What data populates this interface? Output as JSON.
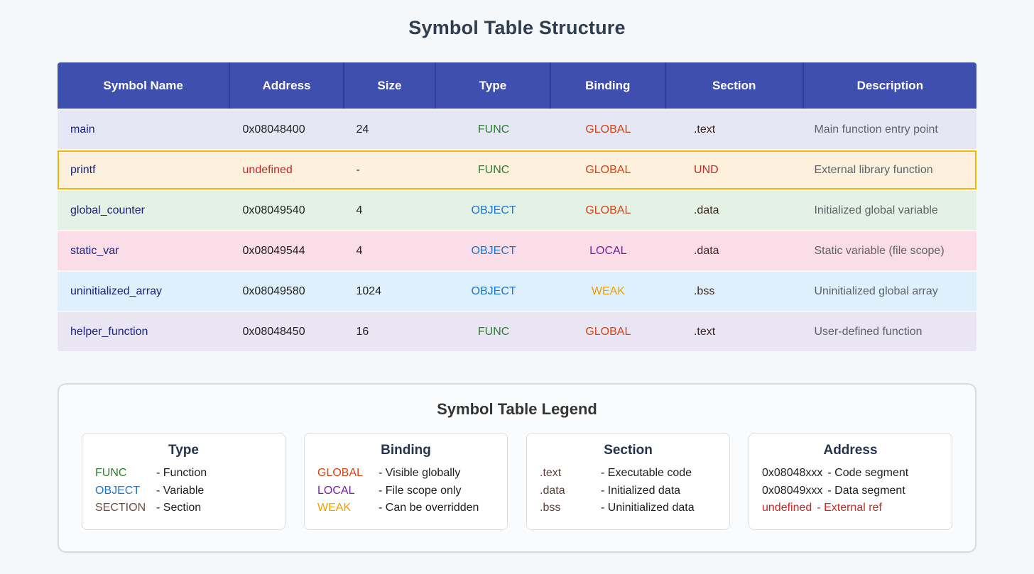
{
  "page": {
    "title": "Symbol Table Structure"
  },
  "table": {
    "headers": [
      "Symbol Name",
      "Address",
      "Size",
      "Type",
      "Binding",
      "Section",
      "Description"
    ],
    "header_bg": "#3f4fb0",
    "rows": [
      {
        "symbol": "main",
        "address": "0x08048400",
        "size": "24",
        "type": "FUNC",
        "binding": "GLOBAL",
        "section": ".text",
        "description": "Main function entry point",
        "bg": "#e6e7f5",
        "type_color": "#2e7d32",
        "binding_color": "#d84315"
      },
      {
        "symbol": "printf",
        "address": "undefined",
        "size": "-",
        "type": "FUNC",
        "binding": "GLOBAL",
        "section": "UND",
        "description": "External library function",
        "bg": "#fdf1dd",
        "border_color": "#f2b705",
        "address_color": "#c62828",
        "type_color": "#2e7d32",
        "binding_color": "#d84315",
        "section_color": "#c62828"
      },
      {
        "symbol": "global_counter",
        "address": "0x08049540",
        "size": "4",
        "type": "OBJECT",
        "binding": "GLOBAL",
        "section": ".data",
        "description": "Initialized global variable",
        "bg": "#e4f2e5",
        "type_color": "#1976d2",
        "binding_color": "#d84315"
      },
      {
        "symbol": "static_var",
        "address": "0x08049544",
        "size": "4",
        "type": "OBJECT",
        "binding": "LOCAL",
        "section": ".data",
        "description": "Static variable (file scope)",
        "bg": "#fbdde8",
        "type_color": "#1976d2",
        "binding_color": "#7b1fa2"
      },
      {
        "symbol": "uninitialized_array",
        "address": "0x08049580",
        "size": "1024",
        "type": "OBJECT",
        "binding": "WEAK",
        "section": ".bss",
        "description": "Uninitialized global array",
        "bg": "#def0fb",
        "type_color": "#1976d2",
        "binding_color": "#f59e00"
      },
      {
        "symbol": "helper_function",
        "address": "0x08048450",
        "size": "16",
        "type": "FUNC",
        "binding": "GLOBAL",
        "section": ".text",
        "description": "User-defined function",
        "bg": "#e9e5f3",
        "type_color": "#2e7d32",
        "binding_color": "#d84315"
      }
    ]
  },
  "legend": {
    "title": "Symbol Table Legend",
    "cards": [
      {
        "title": "Type",
        "items": [
          {
            "term": "FUNC",
            "term_color": "#2e7d32",
            "desc": "- Function"
          },
          {
            "term": "OBJECT",
            "term_color": "#1976d2",
            "desc": "- Variable"
          },
          {
            "term": "SECTION",
            "term_color": "#6d4c41",
            "desc": "- Section"
          }
        ]
      },
      {
        "title": "Binding",
        "items": [
          {
            "term": "GLOBAL",
            "term_color": "#d84315",
            "desc": "- Visible globally"
          },
          {
            "term": "LOCAL",
            "term_color": "#7b1fa2",
            "desc": "- File scope only"
          },
          {
            "term": "WEAK",
            "term_color": "#f59e00",
            "desc": "- Can be overridden"
          }
        ]
      },
      {
        "title": "Section",
        "items": [
          {
            "term": ".text",
            "term_color": "#5d4037",
            "desc": "- Executable code"
          },
          {
            "term": ".data",
            "term_color": "#5d4037",
            "desc": "- Initialized data"
          },
          {
            "term": ".bss",
            "term_color": "#5d4037",
            "desc": "- Uninitialized data"
          }
        ]
      },
      {
        "title": "Address",
        "items": [
          {
            "term": "0x08048xxx",
            "term_color": "#212121",
            "desc": "- Code segment",
            "desc_color": "#212121"
          },
          {
            "term": "0x08049xxx",
            "term_color": "#212121",
            "desc": "- Data segment",
            "desc_color": "#212121"
          },
          {
            "term": "undefined",
            "term_color": "#c62828",
            "desc": "- External ref",
            "desc_color": "#c62828"
          }
        ]
      }
    ]
  }
}
